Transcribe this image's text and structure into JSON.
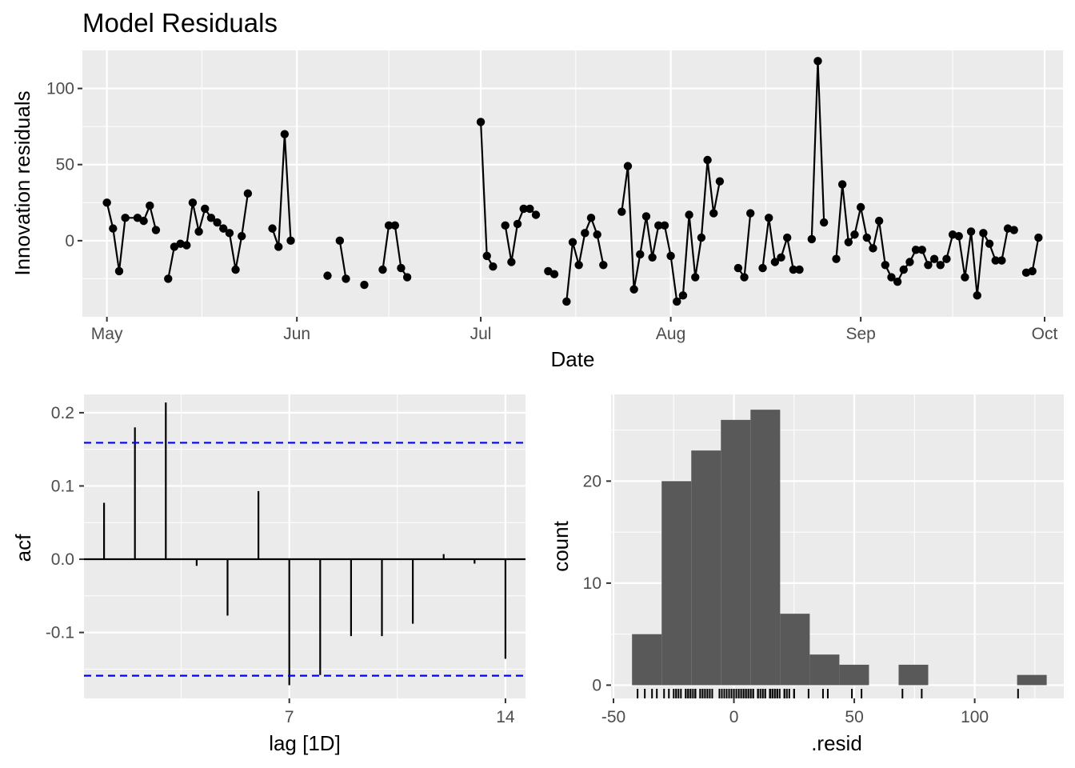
{
  "title": "Model Residuals",
  "chart_data": [
    {
      "type": "line",
      "title": "Model Residuals",
      "xlabel": "Date",
      "ylabel": "Innovation residuals",
      "xtick_labels": [
        "May",
        "Jun",
        "Jul",
        "Aug",
        "Sep",
        "Oct"
      ],
      "xtick_dates": [
        "2000-05-01",
        "2000-06-01",
        "2000-07-01",
        "2000-08-01",
        "2000-09-01",
        "2000-10-01"
      ],
      "xlim": [
        "2000-04-27",
        "2000-10-04"
      ],
      "ytick_labels": [
        "0",
        "50",
        "100"
      ],
      "yticks": [
        0,
        50,
        100
      ],
      "ylim": [
        -50,
        125
      ],
      "grid": true,
      "segments": [
        [
          [
            "2000-05-01",
            25
          ],
          [
            "2000-05-02",
            8
          ],
          [
            "2000-05-03",
            -20
          ],
          [
            "2000-05-04",
            15
          ],
          [
            "2000-05-06",
            15
          ],
          [
            "2000-05-07",
            13
          ],
          [
            "2000-05-08",
            23
          ],
          [
            "2000-05-09",
            7
          ]
        ],
        [
          [
            "2000-05-11",
            -25
          ],
          [
            "2000-05-12",
            -4
          ],
          [
            "2000-05-13",
            -2
          ],
          [
            "2000-05-14",
            -3
          ],
          [
            "2000-05-15",
            25
          ],
          [
            "2000-05-16",
            6
          ],
          [
            "2000-05-17",
            21
          ],
          [
            "2000-05-18",
            15
          ],
          [
            "2000-05-19",
            12
          ],
          [
            "2000-05-20",
            8
          ],
          [
            "2000-05-21",
            5
          ],
          [
            "2000-05-22",
            -19
          ],
          [
            "2000-05-23",
            3
          ],
          [
            "2000-05-24",
            31
          ]
        ],
        [
          [
            "2000-05-28",
            8
          ],
          [
            "2000-05-29",
            -4
          ],
          [
            "2000-05-30",
            70
          ],
          [
            "2000-05-31",
            0
          ]
        ],
        [
          [
            "2000-06-06",
            -23
          ]
        ],
        [
          [
            "2000-06-08",
            0
          ],
          [
            "2000-06-09",
            -25
          ]
        ],
        [
          [
            "2000-06-12",
            -29
          ]
        ],
        [
          [
            "2000-06-15",
            -19
          ],
          [
            "2000-06-16",
            10
          ],
          [
            "2000-06-17",
            10
          ],
          [
            "2000-06-18",
            -18
          ],
          [
            "2000-06-19",
            -24
          ]
        ],
        [
          [
            "2000-07-01",
            78
          ],
          [
            "2000-07-02",
            -10
          ],
          [
            "2000-07-03",
            -17
          ]
        ],
        [
          [
            "2000-07-05",
            10
          ],
          [
            "2000-07-06",
            -14
          ],
          [
            "2000-07-07",
            11
          ],
          [
            "2000-07-08",
            21
          ],
          [
            "2000-07-09",
            21
          ],
          [
            "2000-07-10",
            17
          ]
        ],
        [
          [
            "2000-07-12",
            -20
          ],
          [
            "2000-07-13",
            -22
          ]
        ],
        [
          [
            "2000-07-15",
            -40
          ],
          [
            "2000-07-16",
            -1
          ],
          [
            "2000-07-17",
            -16
          ],
          [
            "2000-07-18",
            5
          ],
          [
            "2000-07-19",
            15
          ],
          [
            "2000-07-20",
            4
          ],
          [
            "2000-07-21",
            -16
          ]
        ],
        [
          [
            "2000-07-24",
            19
          ],
          [
            "2000-07-25",
            49
          ],
          [
            "2000-07-26",
            -32
          ],
          [
            "2000-07-27",
            -9
          ],
          [
            "2000-07-28",
            16
          ],
          [
            "2000-07-29",
            -11
          ],
          [
            "2000-07-30",
            10
          ],
          [
            "2000-07-31",
            10
          ],
          [
            "2000-08-01",
            -10
          ],
          [
            "2000-08-02",
            -40
          ],
          [
            "2000-08-03",
            -36
          ],
          [
            "2000-08-04",
            17
          ],
          [
            "2000-08-05",
            -24
          ],
          [
            "2000-08-06",
            2
          ],
          [
            "2000-08-07",
            53
          ],
          [
            "2000-08-08",
            18
          ],
          [
            "2000-08-09",
            39
          ]
        ],
        [
          [
            "2000-08-12",
            -18
          ],
          [
            "2000-08-13",
            -24
          ],
          [
            "2000-08-14",
            18
          ]
        ],
        [
          [
            "2000-08-16",
            -18
          ],
          [
            "2000-08-17",
            15
          ],
          [
            "2000-08-18",
            -14
          ],
          [
            "2000-08-19",
            -11
          ],
          [
            "2000-08-20",
            2
          ],
          [
            "2000-08-21",
            -19
          ],
          [
            "2000-08-22",
            -19
          ]
        ],
        [
          [
            "2000-08-24",
            1
          ],
          [
            "2000-08-25",
            118
          ],
          [
            "2000-08-26",
            12
          ]
        ],
        [
          [
            "2000-08-28",
            -12
          ],
          [
            "2000-08-29",
            37
          ],
          [
            "2000-08-30",
            -1
          ],
          [
            "2000-08-31",
            4
          ],
          [
            "2000-09-01",
            22
          ],
          [
            "2000-09-02",
            2
          ],
          [
            "2000-09-03",
            -5
          ],
          [
            "2000-09-04",
            13
          ],
          [
            "2000-09-05",
            -16
          ],
          [
            "2000-09-06",
            -24
          ],
          [
            "2000-09-07",
            -27
          ],
          [
            "2000-09-08",
            -19
          ],
          [
            "2000-09-09",
            -14
          ],
          [
            "2000-09-10",
            -6
          ],
          [
            "2000-09-11",
            -6
          ],
          [
            "2000-09-12",
            -16
          ],
          [
            "2000-09-13",
            -12
          ],
          [
            "2000-09-14",
            -16
          ],
          [
            "2000-09-15",
            -12
          ],
          [
            "2000-09-16",
            4
          ],
          [
            "2000-09-17",
            3
          ],
          [
            "2000-09-18",
            -24
          ],
          [
            "2000-09-19",
            6
          ],
          [
            "2000-09-20",
            -36
          ],
          [
            "2000-09-21",
            5
          ],
          [
            "2000-09-22",
            -2
          ],
          [
            "2000-09-23",
            -13
          ],
          [
            "2000-09-24",
            -13
          ],
          [
            "2000-09-25",
            8
          ],
          [
            "2000-09-26",
            7
          ]
        ],
        [
          [
            "2000-09-28",
            -21
          ],
          [
            "2000-09-29",
            -20
          ],
          [
            "2000-09-30",
            2
          ]
        ]
      ]
    },
    {
      "type": "bar",
      "xlabel": "lag [1D]",
      "ylabel": "acf",
      "xtick_labels": [
        "7",
        "14"
      ],
      "xticks": [
        7,
        14
      ],
      "ytick_labels": [
        "-0.1",
        "0.0",
        "0.1",
        "0.2"
      ],
      "yticks": [
        -0.1,
        0.0,
        0.1,
        0.2
      ],
      "ylim": [
        -0.19,
        0.225
      ],
      "xlim": [
        0.35,
        14.65
      ],
      "lags": [
        1,
        2,
        3,
        4,
        5,
        6,
        7,
        8,
        9,
        10,
        11,
        12,
        13,
        14
      ],
      "values": [
        0.077,
        0.18,
        0.214,
        -0.009,
        -0.077,
        0.093,
        -0.172,
        -0.158,
        -0.105,
        -0.105,
        -0.088,
        0.007,
        -0.006,
        -0.136
      ],
      "confidence_bounds": [
        0.159,
        -0.159
      ],
      "bound_color": "#0000ff",
      "grid": true
    },
    {
      "type": "bar",
      "xlabel": ".resid",
      "ylabel": "count",
      "xtick_labels": [
        "-50",
        "0",
        "50",
        "100"
      ],
      "xticks": [
        -50,
        0,
        50,
        100
      ],
      "ytick_labels": [
        "0",
        "10",
        "20"
      ],
      "yticks": [
        0,
        10,
        20
      ],
      "xlim": [
        -51,
        137
      ],
      "ylim": [
        -1.3,
        28.5
      ],
      "bin_width": 12.3,
      "bins": [
        {
          "start": -42.3,
          "count": 5
        },
        {
          "start": -30.0,
          "count": 20
        },
        {
          "start": -17.7,
          "count": 23
        },
        {
          "start": -5.4,
          "count": 26
        },
        {
          "start": 6.9,
          "count": 27
        },
        {
          "start": 19.2,
          "count": 7
        },
        {
          "start": 31.5,
          "count": 3
        },
        {
          "start": 43.8,
          "count": 2
        },
        {
          "start": 56.1,
          "count": 0
        },
        {
          "start": 68.4,
          "count": 2
        },
        {
          "start": 80.7,
          "count": 0
        },
        {
          "start": 93.0,
          "count": 0
        },
        {
          "start": 105.3,
          "count": 0
        },
        {
          "start": 117.6,
          "count": 1
        }
      ],
      "bar_color": "#595959",
      "rug": [
        -40,
        -37,
        -34,
        -32,
        -29,
        -27,
        -25,
        -24,
        -24,
        -23,
        -22,
        -20,
        -20,
        -19,
        -19,
        -19,
        -18,
        -18,
        -17,
        -16,
        -16,
        -16,
        -16,
        -14,
        -14,
        -13,
        -13,
        -12,
        -12,
        -11,
        -11,
        -10,
        -10,
        -9,
        -6,
        -6,
        -5,
        -4,
        -4,
        -3,
        -2,
        -2,
        -1,
        -1,
        0,
        0,
        0,
        1,
        2,
        2,
        2,
        3,
        3,
        4,
        4,
        4,
        5,
        5,
        5,
        6,
        6,
        7,
        7,
        8,
        8,
        8,
        10,
        10,
        10,
        11,
        12,
        12,
        13,
        13,
        15,
        15,
        15,
        15,
        16,
        16,
        17,
        17,
        18,
        18,
        18,
        19,
        21,
        21,
        21,
        22,
        23,
        25,
        25,
        31,
        37,
        39,
        49,
        53,
        70,
        78,
        118
      ],
      "grid": true
    }
  ]
}
